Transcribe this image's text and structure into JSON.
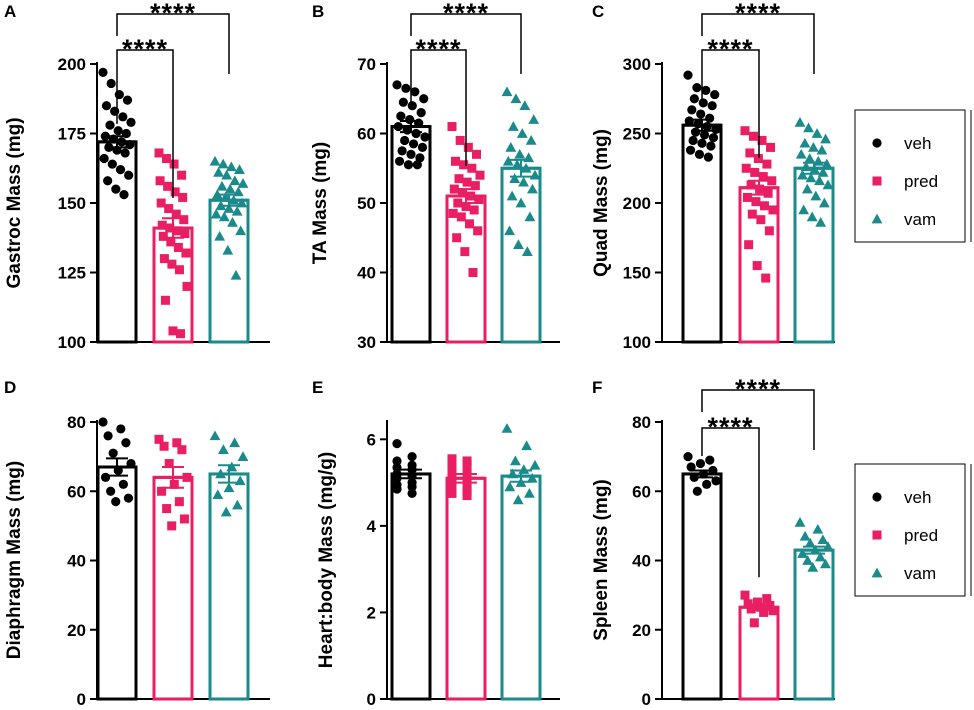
{
  "colors": {
    "veh": "#000000",
    "pred": "#e91e63",
    "vam": "#1a8a8a"
  },
  "legend": [
    {
      "key": "veh",
      "label": "veh",
      "marker": "circle"
    },
    {
      "key": "pred",
      "label": "pred",
      "marker": "square"
    },
    {
      "key": "vam",
      "label": "vam",
      "marker": "triangle"
    }
  ],
  "chart_data": [
    {
      "panel": "A",
      "type": "bar",
      "ylabel": "Gastroc Mass (mg)",
      "ylim": [
        100,
        200
      ],
      "yticks": [
        100,
        125,
        150,
        175,
        200
      ],
      "categories": [
        "veh",
        "pred",
        "vam"
      ],
      "values": [
        172,
        141,
        151
      ],
      "sem": [
        2,
        3.5,
        2
      ],
      "points": [
        [
          197,
          193,
          189,
          187,
          185,
          183,
          181,
          179,
          178,
          176,
          175,
          174,
          173,
          172,
          171,
          170,
          169,
          168,
          166,
          164,
          162,
          160,
          158,
          155,
          153
        ],
        [
          168,
          166,
          164,
          160,
          158,
          156,
          154,
          152,
          150,
          148,
          146,
          144,
          142,
          141,
          140,
          139,
          138,
          136,
          134,
          132,
          130,
          128,
          126,
          120,
          115,
          104,
          103
        ],
        [
          165,
          164,
          163,
          162,
          161,
          160,
          158,
          157,
          156,
          155,
          154,
          153,
          152,
          151,
          150,
          149,
          148,
          147,
          146,
          145,
          143,
          140,
          138,
          133,
          124
        ]
      ],
      "comparisons": [
        {
          "from": 0,
          "to": 1,
          "label": "****"
        },
        {
          "from": 0,
          "to": 2,
          "label": "****"
        }
      ]
    },
    {
      "panel": "B",
      "type": "bar",
      "ylabel": "TA Mass (mg)",
      "ylim": [
        30,
        70
      ],
      "yticks": [
        30,
        40,
        50,
        60,
        70
      ],
      "categories": [
        "veh",
        "pred",
        "vam"
      ],
      "values": [
        61,
        51,
        55
      ],
      "sem": [
        0.8,
        1,
        1.2
      ],
      "points": [
        [
          67,
          66.5,
          66,
          65,
          64.5,
          64,
          63,
          62.5,
          62,
          61.5,
          61,
          60.5,
          60,
          59.5,
          59,
          58.5,
          58,
          57.5,
          57,
          56.5,
          56,
          55.5,
          55.5
        ],
        [
          61,
          59,
          58,
          57,
          56,
          55.5,
          55,
          54,
          53.5,
          53,
          52.5,
          52,
          51.5,
          51,
          50.5,
          50,
          49.5,
          49,
          48.5,
          48,
          47,
          46,
          45,
          43,
          40
        ],
        [
          66,
          65,
          64,
          62,
          61,
          60,
          59,
          58,
          57,
          56.5,
          56,
          55.5,
          55,
          54,
          53.5,
          53,
          52,
          51,
          50,
          48,
          46,
          44,
          43
        ]
      ],
      "comparisons": [
        {
          "from": 0,
          "to": 1,
          "label": "****"
        },
        {
          "from": 0,
          "to": 2,
          "label": "****"
        }
      ]
    },
    {
      "panel": "C",
      "type": "bar",
      "ylabel": "Quad Mass (mg)",
      "ylim": [
        100,
        300
      ],
      "yticks": [
        100,
        150,
        200,
        250,
        300
      ],
      "categories": [
        "veh",
        "pred",
        "vam"
      ],
      "values": [
        256,
        211,
        225
      ],
      "sem": [
        4,
        5,
        4
      ],
      "points": [
        [
          292,
          283,
          281,
          278,
          275,
          272,
          270,
          267,
          264,
          261,
          259,
          257,
          255,
          253,
          251,
          249,
          247,
          245,
          243,
          241,
          238,
          235,
          233
        ],
        [
          252,
          248,
          245,
          240,
          236,
          232,
          228,
          225,
          222,
          219,
          216,
          213,
          210,
          207,
          204,
          201,
          198,
          195,
          192,
          188,
          180,
          170,
          155,
          146
        ],
        [
          258,
          254,
          250,
          246,
          243,
          240,
          238,
          235,
          232,
          230,
          228,
          226,
          224,
          222,
          220,
          218,
          216,
          213,
          210,
          205,
          200,
          195,
          190,
          186
        ]
      ],
      "comparisons": [
        {
          "from": 0,
          "to": 1,
          "label": "****"
        },
        {
          "from": 0,
          "to": 2,
          "label": "****"
        }
      ]
    },
    {
      "panel": "D",
      "type": "bar",
      "ylabel": "Diaphragm Mass (mg)",
      "ylim": [
        0,
        80
      ],
      "yticks": [
        0,
        20,
        40,
        60,
        80
      ],
      "categories": [
        "veh",
        "pred",
        "vam"
      ],
      "values": [
        67,
        64,
        65
      ],
      "sem": [
        2.5,
        3,
        2.5
      ],
      "points": [
        [
          80,
          78,
          76,
          74,
          71,
          68,
          66,
          64,
          62,
          60,
          58,
          57
        ],
        [
          75,
          74,
          73,
          72,
          68,
          64,
          62,
          60,
          57,
          55,
          52,
          50
        ],
        [
          76,
          74,
          72,
          70,
          67,
          65,
          63,
          61,
          59,
          56,
          54
        ]
      ],
      "comparisons": []
    },
    {
      "panel": "E",
      "type": "bar",
      "ylabel": "Heart:body Mass (mg/g)",
      "ylim": [
        0,
        6.4
      ],
      "yticks": [
        0,
        2,
        4,
        6
      ],
      "categories": [
        "veh",
        "pred",
        "vam"
      ],
      "values": [
        5.2,
        5.1,
        5.15
      ],
      "sem": [
        0.1,
        0.1,
        0.13
      ],
      "points": [
        [
          5.9,
          5.6,
          5.5,
          5.4,
          5.35,
          5.3,
          5.2,
          5.15,
          5.1,
          5.0,
          4.95,
          4.9,
          4.85,
          4.75
        ],
        [
          5.55,
          5.5,
          5.45,
          5.4,
          5.3,
          5.2,
          5.1,
          5.05,
          5.0,
          4.9,
          4.85,
          4.8,
          4.75,
          4.7
        ],
        [
          6.25,
          5.85,
          5.5,
          5.4,
          5.3,
          5.2,
          5.1,
          5.0,
          4.9,
          4.75,
          4.6
        ]
      ],
      "comparisons": []
    },
    {
      "panel": "F",
      "type": "bar",
      "ylabel": "Spleen Mass (mg)",
      "ylim": [
        0,
        80
      ],
      "yticks": [
        0,
        20,
        40,
        60,
        80
      ],
      "categories": [
        "veh",
        "pred",
        "vam"
      ],
      "values": [
        65,
        26.5,
        43
      ],
      "sem": [
        1,
        0.8,
        1
      ],
      "points": [
        [
          70,
          69,
          68,
          67,
          66,
          65,
          64,
          63,
          62,
          60
        ],
        [
          30,
          29,
          28,
          27.5,
          27,
          26.5,
          26,
          25.5,
          25,
          22
        ],
        [
          51,
          49,
          47,
          46,
          45,
          44,
          43,
          42,
          41,
          40,
          39,
          38
        ]
      ],
      "comparisons": [
        {
          "from": 0,
          "to": 1,
          "label": "****"
        },
        {
          "from": 0,
          "to": 2,
          "label": "****"
        }
      ]
    }
  ]
}
